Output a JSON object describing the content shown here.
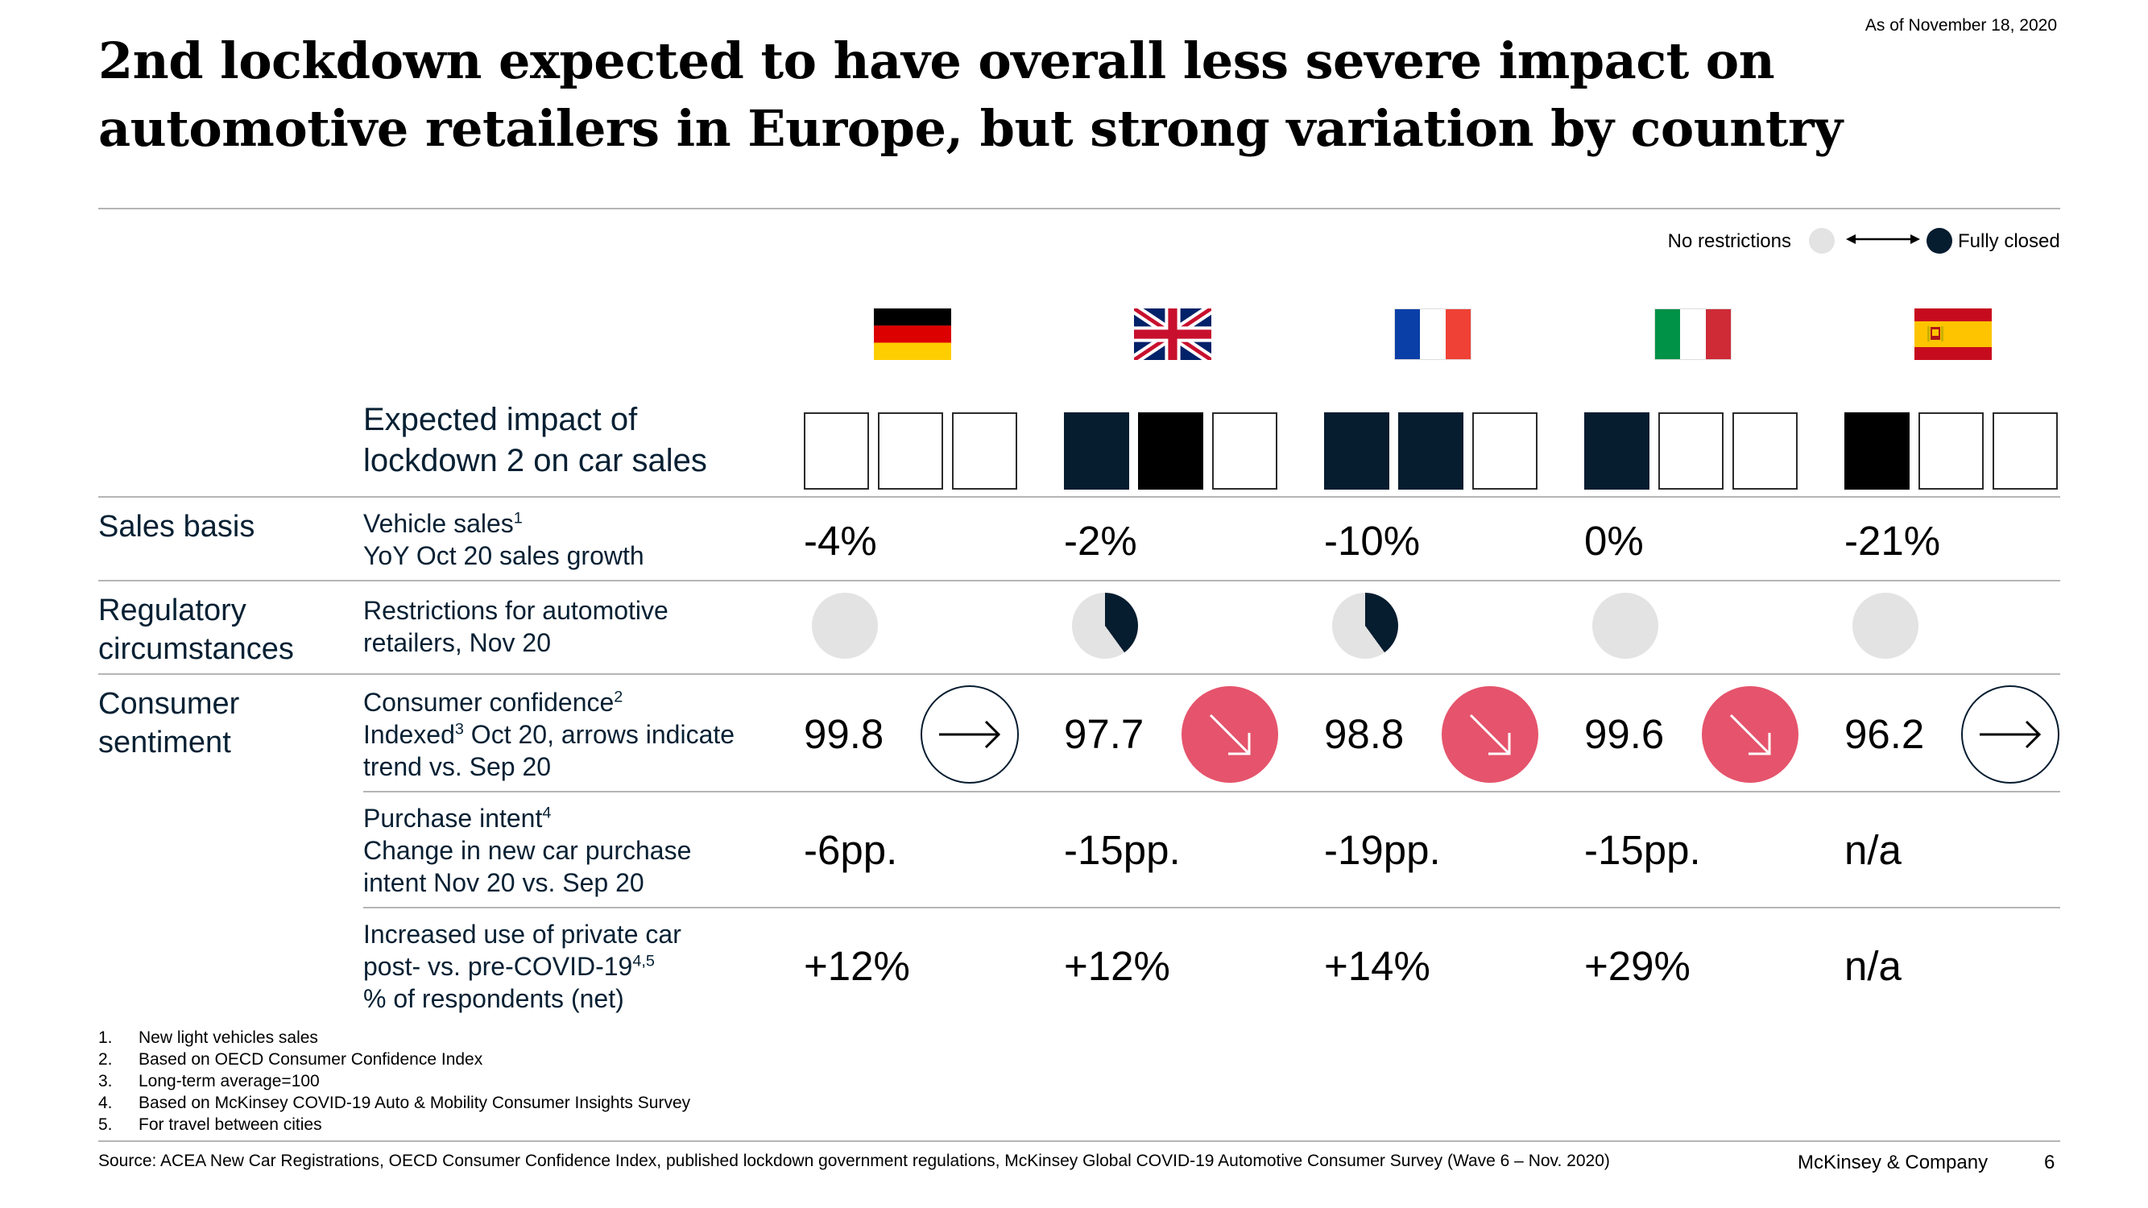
{
  "header": {
    "date": "As of November 18, 2020",
    "title_line1": "2nd lockdown expected to have overall less severe impact on",
    "title_line2": "automotive retailers in Europe, but strong variation by country"
  },
  "legend": {
    "left": "No restrictions",
    "right": "Fully closed",
    "color_light": "#e3e3e3",
    "color_dark": "#061c2f"
  },
  "countries": [
    {
      "name": "Germany",
      "flag": "germany-flag"
    },
    {
      "name": "United Kingdom",
      "flag": "uk-flag"
    },
    {
      "name": "France",
      "flag": "france-flag"
    },
    {
      "name": "Italy",
      "flag": "italy-flag"
    },
    {
      "name": "Spain",
      "flag": "spain-flag"
    }
  ],
  "impact": {
    "label_line1": "Expected impact of",
    "label_line2": "lockdown 2 on car sales",
    "squares": [
      [
        "empty",
        "empty",
        "empty"
      ],
      [
        "navy",
        "black",
        "empty"
      ],
      [
        "navy",
        "navy",
        "empty"
      ],
      [
        "navy",
        "empty",
        "empty"
      ],
      [
        "black",
        "empty",
        "empty"
      ]
    ]
  },
  "sections": {
    "sales_basis": "Sales basis",
    "regulatory_line1": "Regulatory",
    "regulatory_line2": "circumstances",
    "consumer_line1": "Consumer",
    "consumer_line2": "sentiment"
  },
  "rows": {
    "vehicle_sales": {
      "label": "Vehicle sales",
      "sup": "1",
      "sub": "YoY Oct 20 sales growth",
      "values": [
        "-4%",
        "-2%",
        "-10%",
        "0%",
        "-21%"
      ]
    },
    "restrictions": {
      "label_line1": "Restrictions for automotive",
      "label_line2": "retailers, Nov 20",
      "fractions": [
        0,
        0.4,
        0.4,
        0,
        0
      ]
    },
    "confidence": {
      "label": "Consumer confidence",
      "sup": "2",
      "line2a": "Indexed",
      "line2sup": "3",
      "line2b": " Oct 20, arrows indicate",
      "line3": "trend vs. Sep 20",
      "values": [
        "99.8",
        "97.7",
        "98.8",
        "99.6",
        "96.2"
      ],
      "trends": [
        "flat",
        "down",
        "down",
        "down",
        "flat"
      ],
      "down_color": "#e5546c"
    },
    "purchase_intent": {
      "label": "Purchase intent",
      "sup": "4",
      "line2": "Change in new car purchase",
      "line3": "intent Nov 20 vs. Sep 20",
      "values": [
        "-6pp.",
        "-15pp.",
        "-19pp.",
        "-15pp.",
        "n/a"
      ]
    },
    "private_car": {
      "line1": "Increased use of private car",
      "line2": "post- vs. pre-COVID-19",
      "sup": "4,5",
      "line3": "% of respondents (net)",
      "values": [
        "+12%",
        "+12%",
        "+14%",
        "+29%",
        "n/a"
      ]
    }
  },
  "footnotes": [
    {
      "num": "1.",
      "text": "New light vehicles sales"
    },
    {
      "num": "2.",
      "text": "Based on OECD Consumer Confidence Index"
    },
    {
      "num": "3.",
      "text": "Long-term average=100"
    },
    {
      "num": "4.",
      "text": "Based on McKinsey COVID-19 Auto & Mobility Consumer Insights Survey"
    },
    {
      "num": "5.",
      "text": "For travel between cities"
    }
  ],
  "footer": {
    "source": "Source: ACEA New Car Registrations, OECD Consumer Confidence Index, published lockdown government regulations, McKinsey Global COVID-19 Automotive Consumer Survey (Wave 6 – Nov. 2020)",
    "brand": "McKinsey & Company",
    "page": "6"
  }
}
